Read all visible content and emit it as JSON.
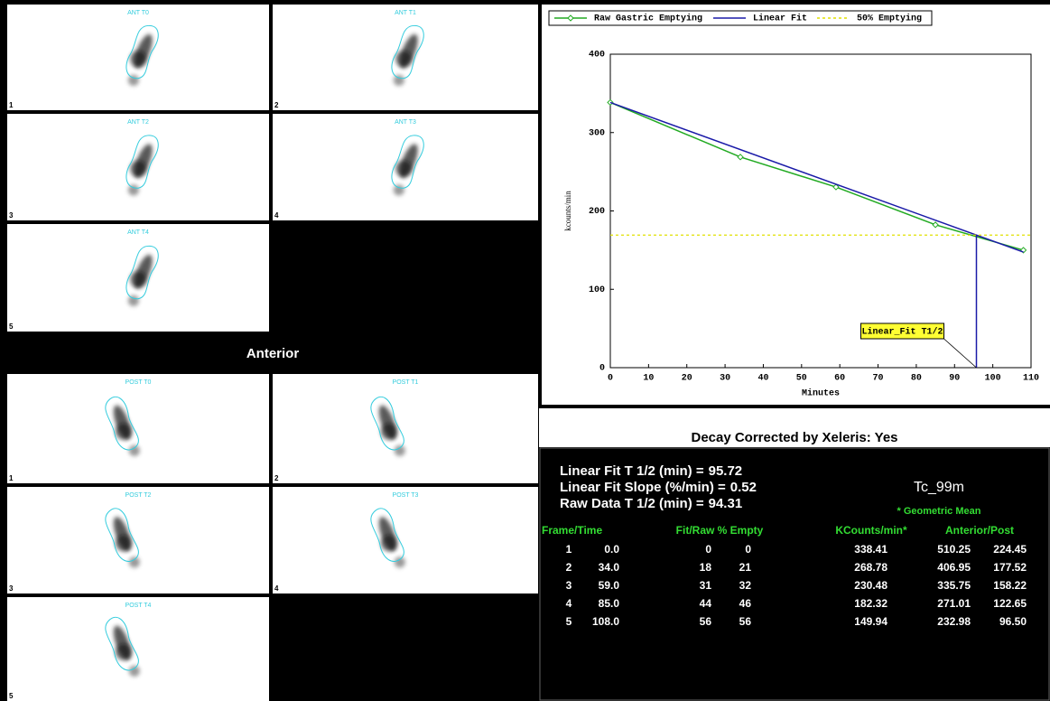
{
  "anterior": {
    "title": "Anterior",
    "frames": [
      {
        "label": "ANT T0",
        "number": "1"
      },
      {
        "label": "ANT T1",
        "number": "2"
      },
      {
        "label": "ANT T2",
        "number": "3"
      },
      {
        "label": "ANT T3",
        "number": "4"
      },
      {
        "label": "ANT T4",
        "number": "5"
      }
    ]
  },
  "posterior": {
    "frames": [
      {
        "label": "POST T0",
        "number": "1"
      },
      {
        "label": "POST T1",
        "number": "2"
      },
      {
        "label": "POST T2",
        "number": "3"
      },
      {
        "label": "POST T3",
        "number": "4"
      },
      {
        "label": "POST T4",
        "number": "5"
      }
    ]
  },
  "chart_data": {
    "type": "line",
    "x_label": "Minutes",
    "y_label": "kcounts/min",
    "xlim": [
      0,
      110
    ],
    "xticks": [
      0,
      10,
      20,
      30,
      40,
      50,
      60,
      70,
      80,
      90,
      100,
      110
    ],
    "ylim": [
      0,
      400
    ],
    "yticks": [
      0,
      100,
      200,
      300,
      400
    ],
    "annotation": "Linear_Fit T1/2",
    "series": [
      {
        "name": "Raw Gastric Emptying",
        "color": "#22aa22",
        "x": [
          0,
          34,
          59,
          85,
          108
        ],
        "values": [
          338.41,
          268.78,
          230.48,
          182.32,
          149.94
        ]
      },
      {
        "name": "Linear Fit",
        "color": "#1a1aa8",
        "x": [
          0,
          108
        ],
        "values": [
          338.4,
          147.5
        ]
      },
      {
        "name": "50% Emptying",
        "color": "#e0e000",
        "x": [
          0,
          110
        ],
        "values": [
          169.2,
          169.2
        ]
      }
    ]
  },
  "summary": {
    "decay": "Decay Corrected by Xeleris: Yes",
    "fit_half_time": {
      "label": "Linear Fit T 1/2 (min) =",
      "value": 95.72
    },
    "fit_slope": {
      "label": "Linear Fit Slope (%/min) =",
      "value": 0.52
    },
    "raw_half_time": {
      "label": "Raw Data T 1/2 (min) =",
      "value": 94.31
    },
    "isotope": "Tc_99m",
    "note": "* Geometric Mean"
  },
  "table": {
    "headers": [
      "Frame/Time",
      "Fit/Raw % Empty",
      "KCounts/min*",
      "Anterior/Post"
    ],
    "rows": [
      [
        "1",
        "0.0",
        "0",
        "0",
        "338.41",
        "510.25",
        "224.45"
      ],
      [
        "2",
        "34.0",
        "18",
        "21",
        "268.78",
        "406.95",
        "177.52"
      ],
      [
        "3",
        "59.0",
        "31",
        "32",
        "230.48",
        "335.75",
        "158.22"
      ],
      [
        "4",
        "85.0",
        "44",
        "46",
        "182.32",
        "271.01",
        "122.65"
      ],
      [
        "5",
        "108.0",
        "56",
        "56",
        "149.94",
        "232.98",
        "96.50"
      ]
    ]
  }
}
